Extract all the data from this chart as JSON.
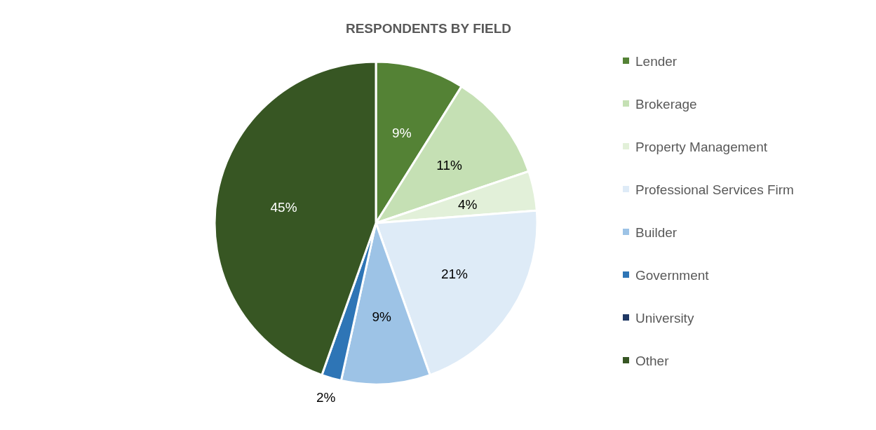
{
  "chart_data": {
    "type": "pie",
    "title": "RESPONDENTS BY FIELD",
    "categories": [
      "Lender",
      "Brokerage",
      "Property Management",
      "Professional Services Firm",
      "Builder",
      "Government",
      "University",
      "Other"
    ],
    "values": [
      9,
      11,
      4,
      21,
      9,
      2,
      0,
      45
    ],
    "value_labels": [
      "9%",
      "11%",
      "4%",
      "21%",
      "9%",
      "2%",
      null,
      "45%"
    ],
    "colors": [
      "#548235",
      "#c5e0b4",
      "#e2f0d9",
      "#deebf7",
      "#9dc3e6",
      "#2e75b6",
      "#1f3864",
      "#375623"
    ],
    "legend": "right"
  }
}
